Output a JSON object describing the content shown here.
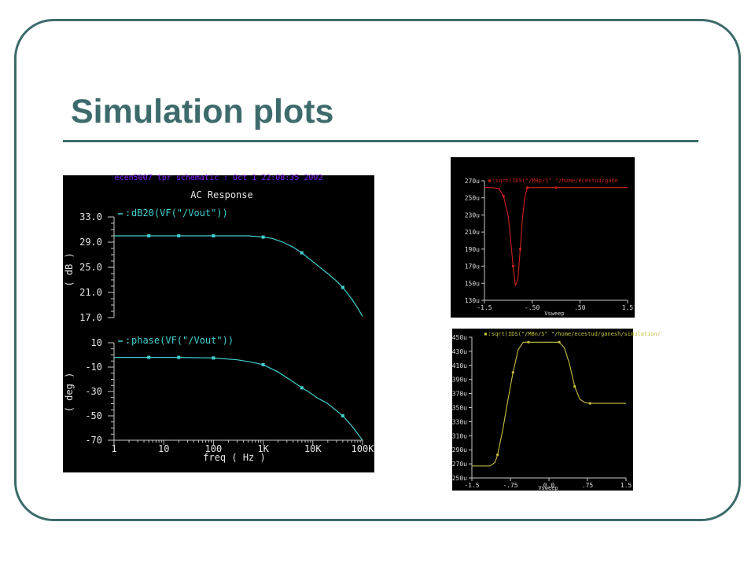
{
  "slide": {
    "title": "Simulation plots",
    "accent_color": "#3d6b6b"
  },
  "chart_data": [
    {
      "type": "line",
      "annotation": "ecen5007 tpr schematic : Oct  1 22:08:35 2002",
      "title": "AC Response",
      "xlabel": "freq ( Hz )",
      "x_scale": "log",
      "xlim": [
        1,
        100000
      ],
      "x_ticks": [
        1,
        10,
        100,
        1000,
        10000,
        100000
      ],
      "x_tick_labels": [
        "1",
        "10",
        "100",
        "1K",
        "10K",
        "100K"
      ],
      "line_color": "#40d0d0",
      "panels": [
        {
          "legend": "dB20(VF(\"/Vout\"))",
          "ylabel": "( dB )",
          "ylim": [
            17.0,
            33.0
          ],
          "y_ticks": [
            17.0,
            21.0,
            25.0,
            29.0,
            33.0
          ],
          "y_tick_labels": [
            "17.0",
            "21.0",
            "25.0",
            "29.0",
            "33.0"
          ],
          "series": [
            {
              "name": "dB20(VF(\"/Vout\"))",
              "x": [
                1,
                5,
                20,
                100,
                500,
                1000,
                1500,
                2500,
                4000,
                6000,
                8000,
                12000,
                20000,
                30000,
                40000,
                60000,
                80000,
                100000
              ],
              "y": [
                30.0,
                30.0,
                30.0,
                30.0,
                30.0,
                29.8,
                29.6,
                29.0,
                28.2,
                27.3,
                26.5,
                25.4,
                24.0,
                22.8,
                21.8,
                20.0,
                18.5,
                17.2
              ]
            }
          ]
        },
        {
          "legend": "phase(VF(\"/Vout\"))",
          "ylabel": "( deg )",
          "ylim": [
            -70,
            10
          ],
          "y_ticks": [
            -70,
            -50,
            -30,
            -10,
            10
          ],
          "y_tick_labels": [
            "-70",
            "-50",
            "-30",
            "-10",
            "10"
          ],
          "series": [
            {
              "name": "phase(VF(\"/Vout\"))",
              "x": [
                1,
                5,
                20,
                100,
                300,
                600,
                1000,
                2000,
                4000,
                6000,
                8000,
                12000,
                20000,
                40000,
                60000,
                100000
              ],
              "y": [
                -2,
                -2,
                -2,
                -2.5,
                -4,
                -6,
                -8,
                -14,
                -22,
                -27,
                -30,
                -35,
                -40,
                -50,
                -58,
                -70
              ]
            }
          ]
        }
      ]
    },
    {
      "type": "line",
      "legend": "sqrt(IDS(\"/M8p/S\" \"/home/ecestud/gane",
      "xlabel": "Vsweep",
      "xlim": [
        -1.5,
        1.5
      ],
      "x_tick_labels": [
        "-1.5",
        "-.50",
        ".50",
        "1.5"
      ],
      "ylim": [
        130,
        270
      ],
      "y_unit": "u",
      "y_tick_labels": [
        "130u",
        "150u",
        "170u",
        "190u",
        "210u",
        "230u",
        "250u",
        "270u"
      ],
      "line_color": "#d02020",
      "series": [
        {
          "x": [
            -1.5,
            -1.35,
            -1.2,
            -1.1,
            -1.0,
            -0.95,
            -0.9,
            -0.85,
            -0.8,
            -0.75,
            -0.7,
            -0.65,
            -0.6,
            -0.55,
            -0.5,
            0.0,
            0.5,
            1.0,
            1.5
          ],
          "y": [
            262,
            262,
            261,
            252,
            228,
            200,
            170,
            147,
            155,
            190,
            228,
            252,
            262,
            262,
            262,
            262,
            262,
            262,
            262
          ]
        }
      ]
    },
    {
      "type": "line",
      "legend": "sqrt(IDS(\"/M8n/S\" \"/home/ecestud/ganesh/simulation/",
      "xlabel": "Vsweep",
      "xlim": [
        -1.5,
        1.5
      ],
      "x_tick_labels": [
        "-1.5",
        "-.75",
        "0.0",
        ".75",
        "1.5"
      ],
      "ylim": [
        250,
        450
      ],
      "y_unit": "u",
      "y_tick_labels": [
        "250u",
        "270u",
        "290u",
        "310u",
        "330u",
        "350u",
        "370u",
        "390u",
        "410u",
        "430u",
        "450u"
      ],
      "line_color": "#c8c040",
      "series": [
        {
          "x": [
            -1.5,
            -1.15,
            -1.05,
            -1.0,
            -0.9,
            -0.8,
            -0.7,
            -0.6,
            -0.5,
            -0.4,
            -0.3,
            0.0,
            0.2,
            0.3,
            0.4,
            0.5,
            0.6,
            0.7,
            0.8,
            1.0,
            1.5
          ],
          "y": [
            267,
            267,
            272,
            283,
            318,
            360,
            400,
            432,
            443,
            443,
            443,
            443,
            443,
            435,
            412,
            380,
            362,
            357,
            356,
            356,
            356
          ]
        }
      ]
    }
  ]
}
